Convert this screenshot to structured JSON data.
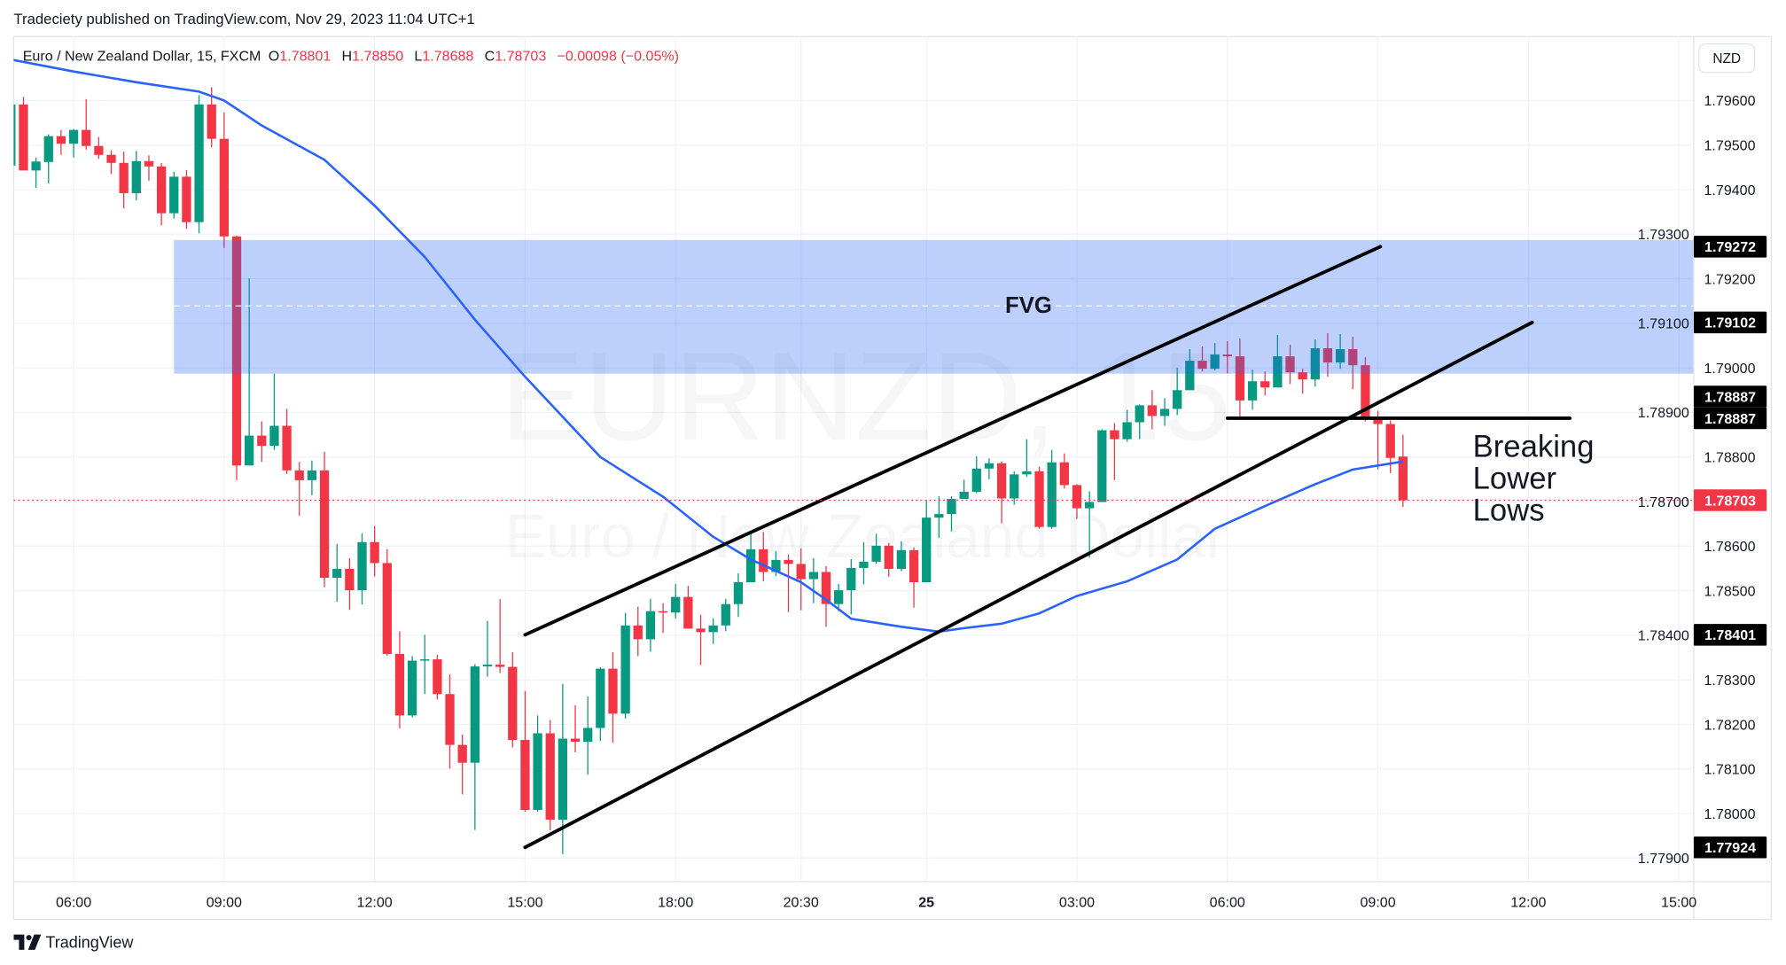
{
  "header": {
    "published": "Tradeciety published on TradingView.com, Nov 29, 2023 11:04 UTC+1"
  },
  "legend": {
    "symbol": "Euro / New Zealand Dollar, 15, FXCM",
    "o_label": "O",
    "o": "1.78801",
    "h_label": "H",
    "h": "1.78850",
    "l_label": "L",
    "l": "1.78688",
    "c_label": "C",
    "c": "1.78703",
    "change": "−0.00098 (−0.05%)"
  },
  "currency_button": "NZD",
  "watermark": {
    "line1": "EURNZD, 15",
    "line2": "Euro / New Zealand Dollar"
  },
  "footer": {
    "brand": "TradingView"
  },
  "colors": {
    "up": "#089981",
    "down": "#f23645",
    "ma": "#2962ff",
    "fvg": "rgba(33,100,243,0.30)",
    "label_bg": "#000000",
    "last_price": "#f23645",
    "grid": "#f0f3fa"
  },
  "icons": {
    "logo": "tradingview-logo-icon"
  },
  "chart_data": {
    "type": "candlestick",
    "ylim": [
      1.7788,
      1.7974
    ],
    "price_ticks": [
      "1.79600",
      "1.79500",
      "1.79400",
      "1.79300",
      "1.79200",
      "1.79100",
      "1.79000",
      "1.78900",
      "1.78800",
      "1.78700",
      "1.78600",
      "1.78500",
      "1.78400",
      "1.78300",
      "1.78200",
      "1.78100",
      "1.78000",
      "1.77900"
    ],
    "time_ticks": [
      {
        "label": "06:00",
        "bold": false
      },
      {
        "label": "09:00",
        "bold": false
      },
      {
        "label": "12:00",
        "bold": false
      },
      {
        "label": "15:00",
        "bold": false
      },
      {
        "label": "18:00",
        "bold": false
      },
      {
        "label": "20:30",
        "bold": false
      },
      {
        "label": "25",
        "bold": true
      },
      {
        "label": "03:00",
        "bold": false
      },
      {
        "label": "06:00",
        "bold": false
      },
      {
        "label": "09:00",
        "bold": false
      },
      {
        "label": "12:00",
        "bold": false
      },
      {
        "label": "15:00",
        "bold": false
      }
    ],
    "candles": [
      [
        1.79454,
        1.79591,
        1.79454,
        1.79591
      ],
      [
        1.79591,
        1.79608,
        1.79443,
        1.79443
      ],
      [
        1.79443,
        1.79472,
        1.79404,
        1.79463
      ],
      [
        1.79462,
        1.79524,
        1.79414,
        1.7952
      ],
      [
        1.7952,
        1.79534,
        1.79478,
        1.79503
      ],
      [
        1.79503,
        1.79536,
        1.79472,
        1.79534
      ],
      [
        1.79534,
        1.79603,
        1.7949,
        1.79498
      ],
      [
        1.79498,
        1.79518,
        1.79469,
        1.79478
      ],
      [
        1.79478,
        1.79488,
        1.79435,
        1.7946
      ],
      [
        1.7946,
        1.79485,
        1.79358,
        1.79392
      ],
      [
        1.79392,
        1.79487,
        1.79376,
        1.79464
      ],
      [
        1.79464,
        1.79477,
        1.7942,
        1.79452
      ],
      [
        1.79452,
        1.7946,
        1.7932,
        1.79347
      ],
      [
        1.79347,
        1.7944,
        1.79335,
        1.79429
      ],
      [
        1.79429,
        1.79444,
        1.79312,
        1.79327
      ],
      [
        1.79327,
        1.79612,
        1.79302,
        1.79591
      ],
      [
        1.79591,
        1.7963,
        1.79495,
        1.79514
      ],
      [
        1.79514,
        1.79573,
        1.79269,
        1.79295
      ],
      [
        1.79295,
        1.79297,
        1.78748,
        1.78781
      ],
      [
        1.78781,
        1.79201,
        1.78781,
        1.78848
      ],
      [
        1.78848,
        1.7888,
        1.78789,
        1.78825
      ],
      [
        1.78825,
        1.78987,
        1.78816,
        1.7887
      ],
      [
        1.7887,
        1.78908,
        1.78762,
        1.7877
      ],
      [
        1.7877,
        1.78789,
        1.78668,
        1.78748
      ],
      [
        1.78748,
        1.78792,
        1.78714,
        1.7877
      ],
      [
        1.7877,
        1.78812,
        1.78508,
        1.78529
      ],
      [
        1.78529,
        1.78605,
        1.78475,
        1.78549
      ],
      [
        1.78549,
        1.78573,
        1.78457,
        1.78501
      ],
      [
        1.78501,
        1.78629,
        1.78469,
        1.78609
      ],
      [
        1.78609,
        1.78645,
        1.78532,
        1.78562
      ],
      [
        1.78562,
        1.78593,
        1.78354,
        1.78358
      ],
      [
        1.78358,
        1.78409,
        1.78191,
        1.7822
      ],
      [
        1.7822,
        1.78353,
        1.78216,
        1.78343
      ],
      [
        1.78343,
        1.78401,
        1.78268,
        1.78346
      ],
      [
        1.78346,
        1.78356,
        1.78256,
        1.78268
      ],
      [
        1.78268,
        1.78312,
        1.78101,
        1.78154
      ],
      [
        1.78154,
        1.78177,
        1.78043,
        1.78114
      ],
      [
        1.78114,
        1.78335,
        1.77963,
        1.7833
      ],
      [
        1.7833,
        1.78432,
        1.78307,
        1.78334
      ],
      [
        1.78334,
        1.78481,
        1.78315,
        1.78329
      ],
      [
        1.78329,
        1.78362,
        1.78148,
        1.78165
      ],
      [
        1.78165,
        1.78275,
        1.78004,
        1.78008
      ],
      [
        1.78008,
        1.7822,
        1.78004,
        1.7818
      ],
      [
        1.7818,
        1.7821,
        1.77962,
        1.77986
      ],
      [
        1.77986,
        1.78291,
        1.77909,
        1.78168
      ],
      [
        1.78168,
        1.78243,
        1.78137,
        1.78161
      ],
      [
        1.78161,
        1.78263,
        1.78087,
        1.78192
      ],
      [
        1.78192,
        1.78328,
        1.78163,
        1.78325
      ],
      [
        1.78325,
        1.78362,
        1.78159,
        1.78224
      ],
      [
        1.78224,
        1.7845,
        1.78213,
        1.78422
      ],
      [
        1.78422,
        1.78464,
        1.78353,
        1.78391
      ],
      [
        1.78391,
        1.78482,
        1.78363,
        1.78454
      ],
      [
        1.78454,
        1.78472,
        1.78405,
        1.78451
      ],
      [
        1.78451,
        1.78515,
        1.78437,
        1.78486
      ],
      [
        1.78486,
        1.78511,
        1.78415,
        1.78415
      ],
      [
        1.78415,
        1.78446,
        1.78333,
        1.78407
      ],
      [
        1.78407,
        1.78438,
        1.78381,
        1.78422
      ],
      [
        1.78422,
        1.78482,
        1.78409,
        1.7847
      ],
      [
        1.7847,
        1.78539,
        1.78441,
        1.78519
      ],
      [
        1.78519,
        1.78629,
        1.78519,
        1.78593
      ],
      [
        1.78593,
        1.78632,
        1.78521,
        1.78542
      ],
      [
        1.78542,
        1.78589,
        1.78533,
        1.78569
      ],
      [
        1.78569,
        1.78581,
        1.78452,
        1.7856
      ],
      [
        1.7856,
        1.78595,
        1.78456,
        1.78526
      ],
      [
        1.78526,
        1.78573,
        1.78472,
        1.78542
      ],
      [
        1.78542,
        1.78555,
        1.78419,
        1.7847
      ],
      [
        1.7847,
        1.78515,
        1.78454,
        1.78501
      ],
      [
        1.78501,
        1.78571,
        1.78447,
        1.78551
      ],
      [
        1.78551,
        1.78609,
        1.78514,
        1.78565
      ],
      [
        1.78565,
        1.78628,
        1.7856,
        1.78601
      ],
      [
        1.78601,
        1.78607,
        1.78531,
        1.78549
      ],
      [
        1.78549,
        1.78611,
        1.78544,
        1.78591
      ],
      [
        1.78591,
        1.78597,
        1.78462,
        1.78519
      ],
      [
        1.78519,
        1.78703,
        1.78519,
        1.78664
      ],
      [
        1.78664,
        1.78712,
        1.78619,
        1.78672
      ],
      [
        1.78672,
        1.78712,
        1.78633,
        1.78706
      ],
      [
        1.78706,
        1.78749,
        1.78706,
        1.78722
      ],
      [
        1.78722,
        1.78802,
        1.78719,
        1.78774
      ],
      [
        1.78774,
        1.78797,
        1.7875,
        1.78786
      ],
      [
        1.78786,
        1.7879,
        1.78651,
        1.78707
      ],
      [
        1.78707,
        1.78768,
        1.78693,
        1.78761
      ],
      [
        1.78761,
        1.7884,
        1.78755,
        1.78768
      ],
      [
        1.78768,
        1.78778,
        1.78639,
        1.78643
      ],
      [
        1.78643,
        1.78816,
        1.78639,
        1.78788
      ],
      [
        1.78788,
        1.78808,
        1.78729,
        1.78737
      ],
      [
        1.78737,
        1.78739,
        1.78661,
        1.78685
      ],
      [
        1.78685,
        1.78723,
        1.78574,
        1.78699
      ],
      [
        1.78699,
        1.78862,
        1.78699,
        1.7886
      ],
      [
        1.7886,
        1.78876,
        1.78748,
        1.7884
      ],
      [
        1.7884,
        1.78906,
        1.78834,
        1.78878
      ],
      [
        1.78878,
        1.78918,
        1.7884,
        1.78916
      ],
      [
        1.78916,
        1.7895,
        1.78862,
        1.78892
      ],
      [
        1.78892,
        1.78932,
        1.7887,
        1.78908
      ],
      [
        1.78908,
        1.79,
        1.78894,
        1.7895
      ],
      [
        1.7895,
        1.79042,
        1.7895,
        1.79016
      ],
      [
        1.79016,
        1.79048,
        1.78992,
        1.78998
      ],
      [
        1.78998,
        1.79056,
        1.78994,
        1.7903
      ],
      [
        1.7903,
        1.7906,
        1.78988,
        1.79026
      ],
      [
        1.79026,
        1.79066,
        1.7889,
        1.78927
      ],
      [
        1.78927,
        1.78996,
        1.78906,
        1.7897
      ],
      [
        1.7897,
        1.78992,
        1.78938,
        1.78956
      ],
      [
        1.78956,
        1.79074,
        1.78956,
        1.79026
      ],
      [
        1.79026,
        1.79052,
        1.78964,
        1.7899
      ],
      [
        1.7899,
        1.78998,
        1.78942,
        1.78974
      ],
      [
        1.78974,
        1.79064,
        1.78958,
        1.79044
      ],
      [
        1.79044,
        1.79078,
        1.7898,
        1.79012
      ],
      [
        1.79012,
        1.79076,
        1.78998,
        1.79042
      ],
      [
        1.79042,
        1.7907,
        1.78952,
        1.79006
      ],
      [
        1.79006,
        1.79024,
        1.7888,
        1.7889
      ],
      [
        1.7889,
        1.78904,
        1.78772,
        1.78874
      ],
      [
        1.78874,
        1.78882,
        1.78764,
        1.78798
      ],
      [
        1.78801,
        1.7885,
        1.78688,
        1.78703
      ]
    ],
    "moving_average": [
      [
        1,
        1.79692
      ],
      [
        6,
        1.79665
      ],
      [
        11,
        1.79641
      ],
      [
        16,
        1.7962
      ],
      [
        18,
        1.796
      ],
      [
        21,
        1.79544
      ],
      [
        26,
        1.79467
      ],
      [
        30,
        1.79364
      ],
      [
        34,
        1.79249
      ],
      [
        38,
        1.79108
      ],
      [
        42,
        1.7898
      ],
      [
        45,
        1.7889
      ],
      [
        48,
        1.788
      ],
      [
        53,
        1.78711
      ],
      [
        57,
        1.78621
      ],
      [
        60,
        1.7857
      ],
      [
        64,
        1.78519
      ],
      [
        66,
        1.7848
      ],
      [
        68,
        1.78437
      ],
      [
        72,
        1.78419
      ],
      [
        75,
        1.78408
      ],
      [
        77,
        1.78416
      ],
      [
        80,
        1.78426
      ],
      [
        83,
        1.78449
      ],
      [
        86,
        1.78488
      ],
      [
        90,
        1.78521
      ],
      [
        94,
        1.7857
      ],
      [
        97,
        1.78639
      ],
      [
        101,
        1.7869
      ],
      [
        105,
        1.78739
      ],
      [
        108,
        1.78772
      ],
      [
        112,
        1.7879
      ]
    ],
    "fvg_zone": {
      "label": "FVG",
      "from_bar": 14,
      "top": 1.79287,
      "bottom": 1.78987,
      "mid": 1.79139
    },
    "trend_lines": [
      {
        "from": [
          42,
          1.78401
        ],
        "to": [
          110.2,
          1.79272
        ]
      },
      {
        "from": [
          42,
          1.77924
        ],
        "to": [
          122.3,
          1.79102
        ]
      },
      {
        "from": [
          98,
          1.78887
        ],
        "to": [
          125.3,
          1.78887
        ]
      }
    ],
    "annotation": {
      "lines": [
        "Breaking",
        "Lower",
        "Lows"
      ]
    },
    "last_price": {
      "value": 1.78703,
      "label": "1.78703"
    },
    "price_labels": [
      {
        "value": 1.79272,
        "label": "1.79272"
      },
      {
        "value": 1.79102,
        "label": "1.79102"
      },
      {
        "value": 1.78887,
        "label": "1.78887",
        "shift": -1
      },
      {
        "value": 1.78887,
        "label": "1.78887"
      },
      {
        "value": 1.78401,
        "label": "1.78401"
      },
      {
        "value": 1.77924,
        "label": "1.77924"
      }
    ]
  }
}
